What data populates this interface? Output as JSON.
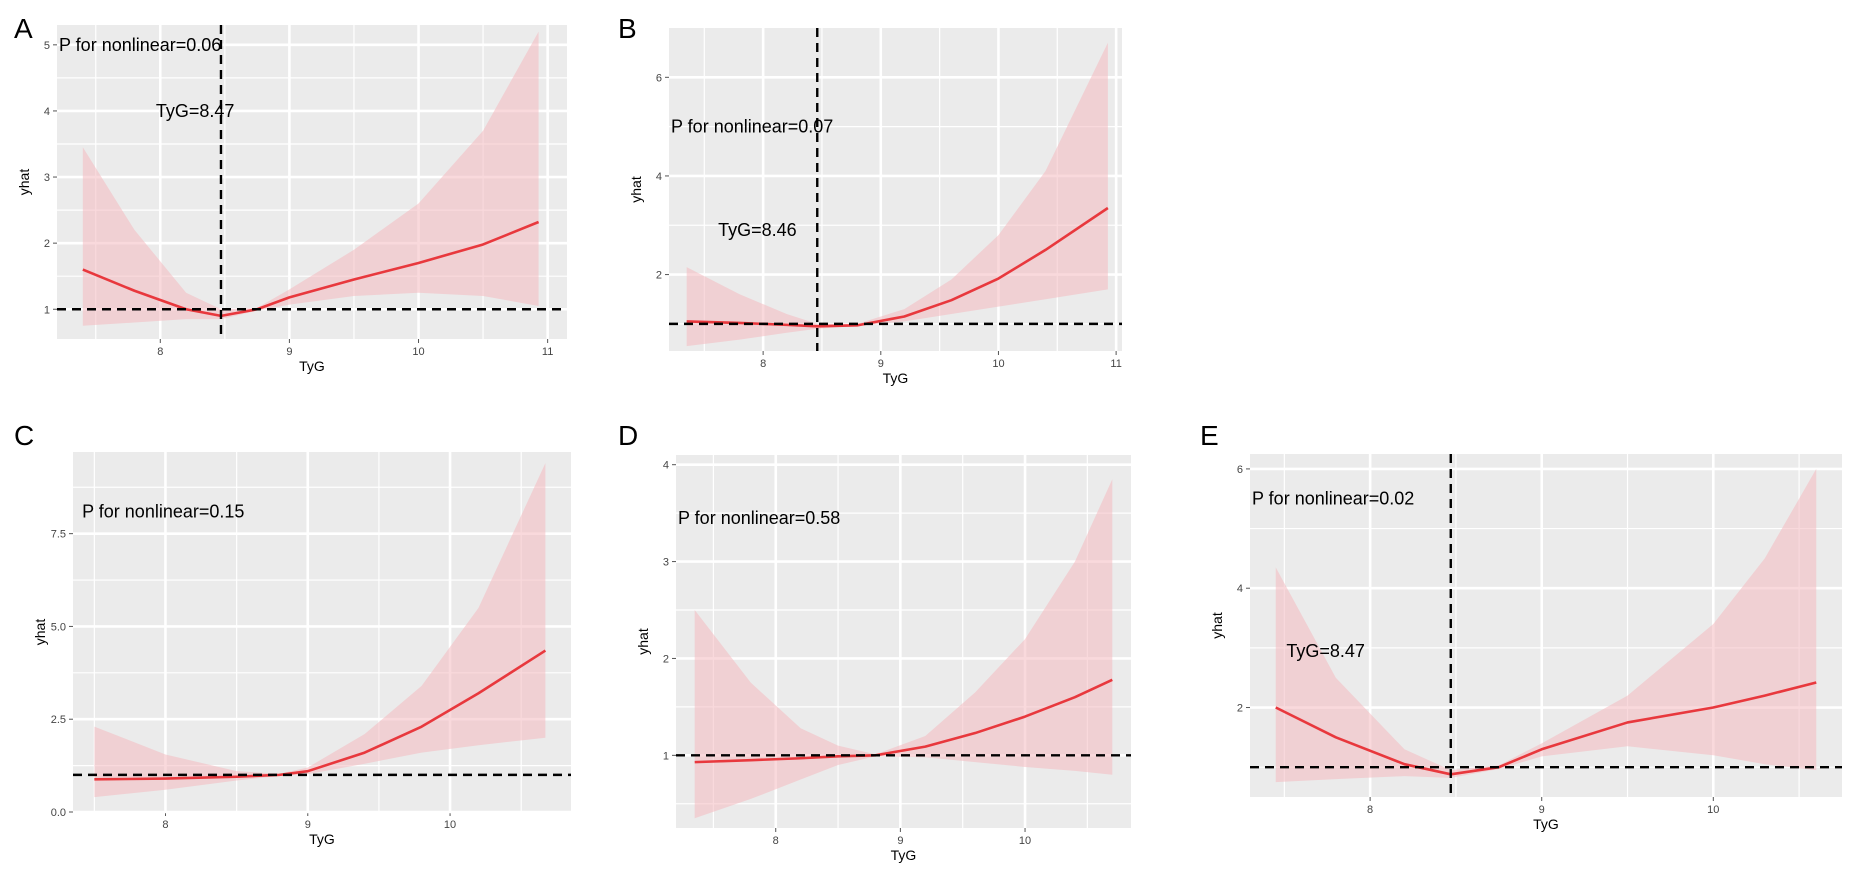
{
  "colors": {
    "panel_bg": "#ebebeb",
    "grid": "#ffffff",
    "line": "#e8383d",
    "band": "#f4b9bf",
    "ref": "#000000"
  },
  "chart_data": [
    {
      "label": "A",
      "type": "line",
      "title": "",
      "xlabel": "TyG",
      "ylabel": "yhat",
      "xlim": [
        7.2,
        11.15
      ],
      "ylim": [
        0.55,
        5.3
      ],
      "xticks": [
        8,
        9,
        10,
        11
      ],
      "yticks": [
        1,
        2,
        3,
        4,
        5
      ],
      "grid": true,
      "ref_x": 8.47,
      "ref_y": 1,
      "annotations": [
        {
          "text": "P for nonlinear=0.06",
          "x": 7.2,
          "y": 5.0
        },
        {
          "text": "TyG=8.47",
          "x": 7.95,
          "y": 4.0
        }
      ],
      "series": [
        {
          "name": "yhat",
          "x": [
            7.4,
            7.8,
            8.2,
            8.47,
            8.75,
            9.0,
            9.5,
            10.0,
            10.5,
            10.93
          ],
          "y": [
            1.6,
            1.28,
            1.0,
            0.9,
            1.0,
            1.18,
            1.45,
            1.7,
            1.98,
            2.32
          ],
          "lower": [
            0.75,
            0.8,
            0.85,
            0.85,
            0.98,
            1.07,
            1.2,
            1.25,
            1.2,
            1.05
          ],
          "upper": [
            3.45,
            2.2,
            1.25,
            1.0,
            1.02,
            1.3,
            1.9,
            2.6,
            3.7,
            5.2
          ]
        }
      ]
    },
    {
      "label": "B",
      "type": "line",
      "title": "",
      "xlabel": "TyG",
      "ylabel": "yhat",
      "xlim": [
        7.2,
        11.05
      ],
      "ylim": [
        0.45,
        7.0
      ],
      "xticks": [
        8,
        9,
        10,
        11
      ],
      "yticks": [
        2,
        4,
        6
      ],
      "grid": true,
      "ref_x": 8.46,
      "ref_y": 1,
      "annotations": [
        {
          "text": "P for nonlinear=0.07",
          "x": 7.2,
          "y": 5.0
        },
        {
          "text": "TyG=8.46",
          "x": 7.6,
          "y": 2.9
        }
      ],
      "series": [
        {
          "name": "yhat",
          "x": [
            7.35,
            7.8,
            8.2,
            8.46,
            8.8,
            9.2,
            9.6,
            10.0,
            10.4,
            10.93
          ],
          "y": [
            1.05,
            1.02,
            0.98,
            0.95,
            0.97,
            1.15,
            1.48,
            1.92,
            2.5,
            3.35
          ],
          "lower": [
            0.55,
            0.68,
            0.82,
            0.9,
            0.96,
            1.05,
            1.2,
            1.35,
            1.5,
            1.7
          ],
          "upper": [
            2.15,
            1.6,
            1.2,
            1.0,
            1.0,
            1.3,
            1.9,
            2.8,
            4.1,
            6.7
          ]
        }
      ]
    },
    {
      "label": "C",
      "type": "line",
      "title": "",
      "xlabel": "TyG",
      "ylabel": "yhat",
      "xlim": [
        7.35,
        10.85
      ],
      "ylim": [
        0,
        9.7
      ],
      "xticks": [
        8,
        9,
        10
      ],
      "yticks": [
        0.0,
        2.5,
        5.0,
        7.5
      ],
      "ytick_labels": [
        "0.0",
        "2.5",
        "5.0",
        "7.5"
      ],
      "grid": true,
      "ref_y": 1,
      "annotations": [
        {
          "text": "P for nonlinear=0.15",
          "x": 7.4,
          "y": 8.1
        }
      ],
      "series": [
        {
          "name": "yhat",
          "x": [
            7.5,
            8.0,
            8.5,
            8.8,
            9.0,
            9.4,
            9.8,
            10.2,
            10.67
          ],
          "y": [
            0.88,
            0.9,
            0.95,
            1.0,
            1.1,
            1.6,
            2.3,
            3.2,
            4.35
          ],
          "lower": [
            0.4,
            0.6,
            0.85,
            0.97,
            1.02,
            1.3,
            1.6,
            1.8,
            2.0
          ],
          "upper": [
            2.3,
            1.55,
            1.1,
            1.03,
            1.2,
            2.1,
            3.4,
            5.5,
            9.4
          ]
        }
      ]
    },
    {
      "label": "D",
      "type": "line",
      "title": "",
      "xlabel": "TyG",
      "ylabel": "yhat",
      "xlim": [
        7.2,
        10.85
      ],
      "ylim": [
        0.25,
        4.1
      ],
      "xticks": [
        8,
        9,
        10
      ],
      "yticks": [
        1,
        2,
        3,
        4
      ],
      "grid": true,
      "ref_y": 1,
      "annotations": [
        {
          "text": "P for nonlinear=0.58",
          "x": 7.2,
          "y": 3.45
        }
      ],
      "series": [
        {
          "name": "yhat",
          "x": [
            7.35,
            7.8,
            8.2,
            8.5,
            8.8,
            9.2,
            9.6,
            10.0,
            10.4,
            10.7
          ],
          "y": [
            0.93,
            0.95,
            0.97,
            0.99,
            1.0,
            1.09,
            1.23,
            1.4,
            1.6,
            1.78
          ],
          "lower": [
            0.35,
            0.55,
            0.75,
            0.9,
            0.99,
            0.98,
            0.93,
            0.88,
            0.84,
            0.8
          ],
          "upper": [
            2.5,
            1.75,
            1.28,
            1.1,
            1.01,
            1.2,
            1.65,
            2.2,
            3.0,
            3.85
          ]
        }
      ]
    },
    {
      "label": "E",
      "type": "line",
      "title": "",
      "xlabel": "TyG",
      "ylabel": "yhat",
      "xlim": [
        7.3,
        10.75
      ],
      "ylim": [
        0.5,
        6.25
      ],
      "xticks": [
        8,
        9,
        10
      ],
      "yticks": [
        2,
        4,
        6
      ],
      "grid": true,
      "ref_x": 8.47,
      "ref_y": 1,
      "annotations": [
        {
          "text": "P for nonlinear=0.02",
          "x": 7.3,
          "y": 5.5
        },
        {
          "text": "TyG=8.47",
          "x": 7.5,
          "y": 2.95
        }
      ],
      "series": [
        {
          "name": "yhat",
          "x": [
            7.45,
            7.8,
            8.2,
            8.47,
            8.75,
            9.0,
            9.5,
            10.0,
            10.3,
            10.6
          ],
          "y": [
            2.0,
            1.5,
            1.05,
            0.88,
            1.0,
            1.3,
            1.75,
            2.0,
            2.2,
            2.42
          ],
          "lower": [
            0.75,
            0.8,
            0.85,
            0.82,
            0.97,
            1.18,
            1.35,
            1.2,
            1.05,
            0.95
          ],
          "upper": [
            4.35,
            2.5,
            1.3,
            0.95,
            1.03,
            1.4,
            2.2,
            3.4,
            4.5,
            6.0
          ]
        }
      ]
    }
  ]
}
